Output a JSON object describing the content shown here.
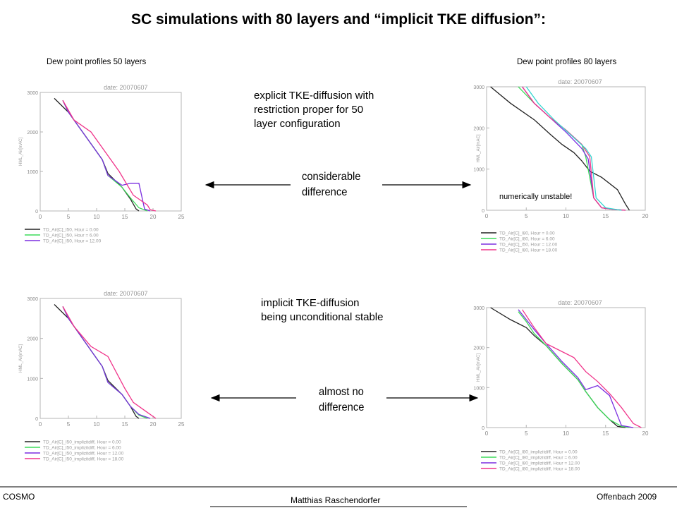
{
  "title": "SC simulations with 80 layers and “implicit TKE diffusion”:",
  "left_caption": "Dew point profiles 50 layers",
  "right_caption": "Dew point profiles 80 layers",
  "note_top": [
    "explicit TKE-diffusion with",
    "restriction proper for 50",
    "layer configuration"
  ],
  "note_bottom": [
    "implicit TKE-diffusion",
    "being unconditional stable"
  ],
  "arrow_top": [
    "considerable",
    "difference"
  ],
  "arrow_bottom": [
    "almost no",
    "difference"
  ],
  "unstable_label": "numerically unstable!",
  "footer": {
    "left": "COSMO",
    "center": "Matthias Raschendorfer",
    "right": "Offenbach 2009"
  },
  "colors": {
    "black": "#222222",
    "green": "#3ddc5a",
    "purple": "#7b2fe0",
    "pink": "#f0348a",
    "cyan": "#36d6d0",
    "frame": "#b4b4b4"
  },
  "chart_data": [
    {
      "type": "line",
      "title": "date:  20070607",
      "ylabel": "HML_Air[mAC]",
      "xticks": [
        "0",
        "5",
        "10",
        "15",
        "20",
        "25"
      ],
      "yticks": [
        "0",
        "1000",
        "2000",
        "3000"
      ],
      "xlim": [
        0,
        25
      ],
      "ylim": [
        0,
        3000
      ],
      "series": [
        {
          "name": "TD_Air[C]_l50, Hour =  0.00",
          "color": "#222222",
          "x": [
            2.5,
            5,
            7,
            9,
            11,
            12,
            14.5,
            16,
            17,
            17.5
          ],
          "y": [
            2850,
            2500,
            2100,
            1700,
            1300,
            950,
            600,
            300,
            50,
            0
          ]
        },
        {
          "name": "TD_Air[C]_l50, Hour =  6.00",
          "color": "#3ddc5a",
          "x": [
            4,
            5,
            7,
            9,
            11,
            12,
            14.5,
            16,
            17.5,
            19
          ],
          "y": [
            2800,
            2500,
            2100,
            1700,
            1300,
            900,
            600,
            330,
            80,
            0
          ]
        },
        {
          "name": "TD_Air[C]_l50, Hour = 12.00",
          "color": "#7b2fe0",
          "x": [
            4,
            5,
            7,
            9,
            11,
            12,
            14.5,
            16,
            17.5,
            18.5,
            19.5
          ],
          "y": [
            2800,
            2500,
            2100,
            1700,
            1300,
            900,
            650,
            700,
            700,
            50,
            0
          ]
        },
        {
          "name": "",
          "color": "#f0348a",
          "x": [
            4,
            6,
            9,
            11,
            14,
            16.5,
            19,
            19.5,
            20.5
          ],
          "y": [
            2800,
            2300,
            2000,
            1600,
            1000,
            400,
            150,
            30,
            0
          ]
        }
      ],
      "legend": [
        "TD_Air[C]_l50, Hour =  0.00",
        "TD_Air[C]_l50, Hour =  6.00",
        "TD_Air[C]_l50, Hour = 12.00"
      ]
    },
    {
      "type": "line",
      "title": "date:  20070607",
      "ylabel": "HML_Air[mAC]",
      "xticks": [
        "0",
        "5",
        "10",
        "15",
        "20"
      ],
      "yticks": [
        "0",
        "1000",
        "2000",
        "3000"
      ],
      "xlim": [
        0,
        20
      ],
      "ylim": [
        0,
        3000
      ],
      "series": [
        {
          "name": "TD_Air[C]_l80, Hour =  0.00",
          "color": "#222222",
          "x": [
            0.5,
            3,
            6,
            8,
            9.5,
            11,
            12,
            13,
            14.5,
            16.5,
            17.5,
            18
          ],
          "y": [
            3000,
            2600,
            2200,
            1850,
            1600,
            1400,
            1200,
            950,
            800,
            500,
            150,
            0
          ]
        },
        {
          "name": "TD_Air[C]_l80, Hour =  6.00",
          "color": "#3ddc5a",
          "x": [
            4,
            6,
            8,
            10,
            12,
            12.5,
            13.5,
            14.5,
            16,
            17.5
          ],
          "y": [
            3000,
            2600,
            2250,
            1950,
            1600,
            1300,
            300,
            60,
            20,
            0
          ]
        },
        {
          "name": "TD_Air[C]_l50, Hour = 12.00",
          "color": "#7b2fe0",
          "x": [
            4.5,
            6,
            8,
            10,
            12,
            12.8,
            13.5,
            14.5,
            16,
            17.5
          ],
          "y": [
            3000,
            2600,
            2250,
            1900,
            1500,
            1250,
            300,
            60,
            20,
            0
          ]
        },
        {
          "name": "TD_Air[C]_l80, Hour = 18.00",
          "color": "#f0348a",
          "x": [
            4.5,
            6,
            8,
            10,
            12,
            13,
            13.5,
            14.5,
            16,
            17.5
          ],
          "y": [
            3000,
            2600,
            2250,
            1950,
            1600,
            1300,
            300,
            60,
            20,
            0
          ]
        },
        {
          "name": "",
          "color": "#36d6d0",
          "x": [
            5,
            6.5,
            8.5,
            10.5,
            12.5,
            13.2,
            13.8,
            15,
            17
          ],
          "y": [
            3000,
            2600,
            2200,
            1850,
            1500,
            1300,
            300,
            60,
            0
          ]
        }
      ],
      "legend": [
        "TD_Air[C]_l80, Hour =  0.00",
        "TD_Air[C]_l80, Hour =  6.00",
        "TD_Air[C]_l50, Hour = 12.00",
        "TD_Air[C]_l80, Hour = 18.00"
      ]
    },
    {
      "type": "line",
      "title": "date:  20070607",
      "ylabel": "HML_Air[mAC]",
      "xticks": [
        "0",
        "5",
        "10",
        "15",
        "20",
        "25"
      ],
      "yticks": [
        "0",
        "1000",
        "2000",
        "3000"
      ],
      "xlim": [
        0,
        25
      ],
      "ylim": [
        0,
        3000
      ],
      "series": [
        {
          "name": "TD_Air[C]_l50_implizitdiff, Hour = 0.00",
          "color": "#222222",
          "x": [
            2.5,
            5,
            7,
            9,
            11,
            12,
            14.5,
            16,
            17,
            17.5
          ],
          "y": [
            2850,
            2500,
            2100,
            1700,
            1300,
            950,
            600,
            300,
            50,
            0
          ]
        },
        {
          "name": "TD_Air[C]_l50_implizitdiff, Hour = 6.00",
          "color": "#3ddc5a",
          "x": [
            4,
            5,
            7,
            9,
            11,
            12,
            14.5,
            16,
            17.5,
            19
          ],
          "y": [
            2800,
            2500,
            2100,
            1700,
            1300,
            900,
            600,
            300,
            80,
            0
          ]
        },
        {
          "name": "TD_Air[C]_l50_implizitdiff, Hour = 12.00",
          "color": "#7b2fe0",
          "x": [
            4,
            5,
            7,
            9,
            11,
            12,
            14.5,
            16,
            17.5,
            19.5
          ],
          "y": [
            2800,
            2500,
            2100,
            1700,
            1300,
            900,
            600,
            300,
            100,
            0
          ]
        },
        {
          "name": "TD_Air[C]_l50_implizitdiff, Hour = 18.00",
          "color": "#f0348a",
          "x": [
            4,
            6,
            9,
            12,
            15,
            16.5,
            18.5,
            20.5
          ],
          "y": [
            2800,
            2300,
            1800,
            1550,
            750,
            400,
            200,
            0
          ]
        }
      ],
      "legend": [
        "TD_Air[C]_l50_implizitdiff, Hour = 0.00",
        "TD_Air[C]_l50_implizitdiff, Hour = 6.00",
        "TD_Air[C]_l50_implizitdiff, Hour = 12.00",
        "TD_Air[C]_l50_implizitdiff, Hour = 18.00"
      ]
    },
    {
      "type": "line",
      "title": "date:  20070607",
      "ylabel": "HML_Air[mAC]",
      "xticks": [
        "0",
        "5",
        "10",
        "15",
        "20"
      ],
      "yticks": [
        "0",
        "1000",
        "2000",
        "3000"
      ],
      "xlim": [
        0,
        20
      ],
      "ylim": [
        0,
        3000
      ],
      "series": [
        {
          "name": "TD_Air[C]_l80_implizitdiff, Hour = 0.00",
          "color": "#222222",
          "x": [
            0.5,
            3,
            5,
            6,
            7.5,
            9.5,
            11.5,
            12.5,
            14,
            15.5,
            16.5,
            17.5
          ],
          "y": [
            3000,
            2700,
            2500,
            2300,
            2050,
            1600,
            1200,
            900,
            500,
            200,
            30,
            0
          ]
        },
        {
          "name": "TD_Air[C]_l80_implizitdiff, Hour = 6.00",
          "color": "#3ddc5a",
          "x": [
            4,
            5,
            6,
            7.5,
            9.5,
            11.5,
            12.5,
            14,
            15.5,
            17,
            18
          ],
          "y": [
            2900,
            2650,
            2350,
            2050,
            1600,
            1200,
            900,
            500,
            200,
            30,
            0
          ]
        },
        {
          "name": "TD_Air[C]_l80_implizitdiff, Hour = 12.00",
          "color": "#7b2fe0",
          "x": [
            4,
            5,
            6,
            7.5,
            9.5,
            11.5,
            12.5,
            14,
            15.5,
            17,
            18.5
          ],
          "y": [
            2950,
            2700,
            2450,
            2100,
            1650,
            1250,
            950,
            1050,
            800,
            50,
            0
          ]
        },
        {
          "name": "TD_Air[C]_l80_implizitdiff, Hour = 18.00",
          "color": "#f0348a",
          "x": [
            4.5,
            6,
            7.5,
            9,
            11,
            12.5,
            14,
            15.5,
            17,
            18.5,
            19.5
          ],
          "y": [
            2950,
            2500,
            2100,
            1950,
            1750,
            1400,
            1150,
            850,
            500,
            100,
            0
          ]
        }
      ],
      "legend": [
        "TD_Air[C]_l80_implizitdiff, Hour = 0.00",
        "TD_Air[C]_l80_implizitdiff, Hour = 6.00",
        "TD_Air[C]_l80_implizitdiff, Hour = 12.00",
        "TD_Air[C]_l80_implizitdiff, Hour = 18.00"
      ]
    }
  ]
}
